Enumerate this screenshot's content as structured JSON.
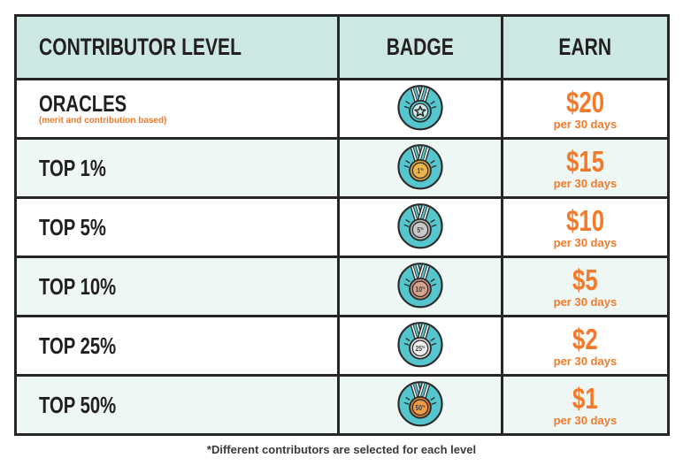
{
  "colors": {
    "header_bg": "#cde8e2",
    "row_tint": "#eef7f4",
    "border": "#262626",
    "accent_orange": "#f4792a",
    "text_dark": "#231f20",
    "badge_teal": "#55c6cd",
    "badge_outline": "#2b2b2b",
    "ribbon_white": "#ffffff"
  },
  "table": {
    "headers": [
      {
        "label": "CONTRIBUTOR LEVEL"
      },
      {
        "label": "BADGE"
      },
      {
        "label": "EARN"
      }
    ],
    "rows": [
      {
        "level": "ORACLES",
        "sublabel": "(merit and contribution based)",
        "badge": {
          "name": "oracles-star-medal",
          "star": true,
          "ring": "#55c6cd",
          "center": "#cfe9e6",
          "label": ""
        },
        "earn": {
          "amount": "$20",
          "period": "per 30 days"
        }
      },
      {
        "level": "TOP 1%",
        "sublabel": "",
        "badge": {
          "name": "top-1-percent-medal",
          "star": false,
          "ring": "#d99f3c",
          "center": "#eab54e",
          "label": "1%"
        },
        "earn": {
          "amount": "$15",
          "period": "per 30 days"
        }
      },
      {
        "level": "TOP 5%",
        "sublabel": "",
        "badge": {
          "name": "top-5-percent-medal",
          "star": false,
          "ring": "#b0b0b0",
          "center": "#c9c9c9",
          "label": "5%"
        },
        "earn": {
          "amount": "$10",
          "period": "per 30 days"
        }
      },
      {
        "level": "TOP 10%",
        "sublabel": "",
        "badge": {
          "name": "top-10-percent-medal",
          "star": false,
          "ring": "#c08d77",
          "center": "#d5a38e",
          "label": "10%"
        },
        "earn": {
          "amount": "$5",
          "period": "per 30 days"
        }
      },
      {
        "level": "TOP 25%",
        "sublabel": "",
        "badge": {
          "name": "top-25-percent-medal",
          "star": false,
          "ring": "#d9d9d9",
          "center": "#f2f2f2",
          "label": "25%"
        },
        "earn": {
          "amount": "$2",
          "period": "per 30 days"
        }
      },
      {
        "level": "TOP 50%",
        "sublabel": "",
        "badge": {
          "name": "top-50-percent-medal",
          "star": false,
          "ring": "#cc7a2e",
          "center": "#ef9a47",
          "label": "50%"
        },
        "earn": {
          "amount": "$1",
          "period": "per 30 days"
        }
      }
    ]
  },
  "footnote": "*Different contributors are selected for each level",
  "chart_data": {
    "type": "table",
    "title": "Contributor reward levels",
    "columns": [
      "CONTRIBUTOR LEVEL",
      "BADGE",
      "EARN"
    ],
    "rows": [
      [
        "ORACLES (merit and contribution based)",
        "teal star medal",
        "$20 per 30 days"
      ],
      [
        "TOP 1%",
        "gold 1% medal",
        "$15 per 30 days"
      ],
      [
        "TOP 5%",
        "silver 5% medal",
        "$10 per 30 days"
      ],
      [
        "TOP 10%",
        "bronze 10% medal",
        "$5 per 30 days"
      ],
      [
        "TOP 25%",
        "white 25% medal",
        "$2 per 30 days"
      ],
      [
        "TOP 50%",
        "orange 50% medal",
        "$1 per 30 days"
      ]
    ],
    "footnote": "*Different contributors are selected for each level"
  }
}
